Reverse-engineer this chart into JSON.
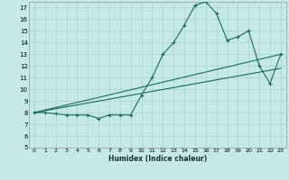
{
  "xlabel": "Humidex (Indice chaleur)",
  "background_color": "#c5e8e8",
  "grid_color": "#afd4d4",
  "line_color": "#1a6b5a",
  "xlim": [
    -0.5,
    23.5
  ],
  "ylim": [
    5,
    17.5
  ],
  "yticks": [
    5,
    6,
    7,
    8,
    9,
    10,
    11,
    12,
    13,
    14,
    15,
    16,
    17
  ],
  "xticks": [
    0,
    1,
    2,
    3,
    4,
    5,
    6,
    7,
    8,
    9,
    10,
    11,
    12,
    13,
    14,
    15,
    16,
    17,
    18,
    19,
    20,
    21,
    22,
    23
  ],
  "main_x": [
    0,
    1,
    2,
    3,
    4,
    5,
    6,
    7,
    8,
    9,
    10,
    11,
    12,
    13,
    14,
    15,
    16,
    17,
    18,
    19,
    20,
    21,
    22,
    23
  ],
  "main_y": [
    8.0,
    8.0,
    7.9,
    7.8,
    7.8,
    7.8,
    7.5,
    7.8,
    7.8,
    7.8,
    9.5,
    11.0,
    13.0,
    14.0,
    15.5,
    17.2,
    17.5,
    16.5,
    14.2,
    14.5,
    15.0,
    12.0,
    10.5,
    13.0
  ],
  "line1_x": [
    0,
    23
  ],
  "line1_y": [
    8.0,
    13.0
  ],
  "line2_x": [
    0,
    23
  ],
  "line2_y": [
    8.0,
    11.8
  ]
}
